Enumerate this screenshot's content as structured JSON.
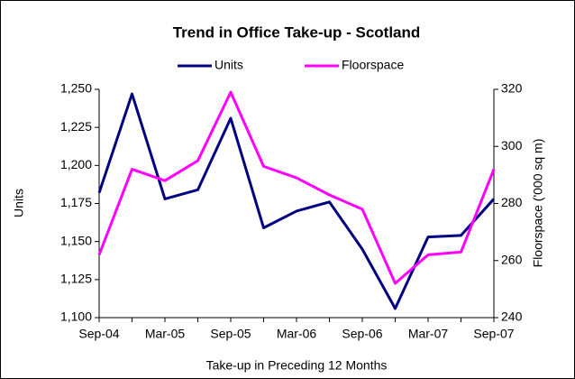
{
  "chart_data": {
    "type": "line",
    "title": "Trend in Office Take-up - Scotland",
    "x_label": "Take-up in Preceding 12 Months",
    "y_label": "Units",
    "y2_label": "Floorspace ('000 sq m)",
    "categories": [
      "Sep-04",
      null,
      "Mar-05",
      null,
      "Sep-05",
      null,
      "Mar-06",
      null,
      "Sep-06",
      null,
      "Mar-07",
      null,
      "Sep-07"
    ],
    "series": [
      {
        "name": "Units",
        "color": "#000080",
        "values": [
          1182,
          1247,
          1178,
          1184,
          1231,
          1159,
          1170,
          1176,
          1145,
          1106,
          1153,
          1154,
          1178
        ]
      },
      {
        "name": "Floorspace",
        "color": "#ff00ff",
        "axis": "y2",
        "values": [
          262,
          292,
          288,
          295,
          319,
          293,
          289,
          283,
          278,
          252,
          262,
          263,
          292
        ]
      }
    ],
    "ylim": [
      1100,
      1250
    ],
    "yticks": [
      {
        "value": 1100,
        "label": "1,100"
      },
      {
        "value": 1125,
        "label": "1,125"
      },
      {
        "value": 1150,
        "label": "1,150"
      },
      {
        "value": 1175,
        "label": "1,175"
      },
      {
        "value": 1200,
        "label": "1,200"
      },
      {
        "value": 1225,
        "label": "1,225"
      },
      {
        "value": 1250,
        "label": "1,250"
      }
    ],
    "y2lim": [
      240,
      320
    ],
    "y2ticks": [
      240,
      260,
      280,
      300,
      320
    ],
    "legend": "top",
    "grid": false
  }
}
